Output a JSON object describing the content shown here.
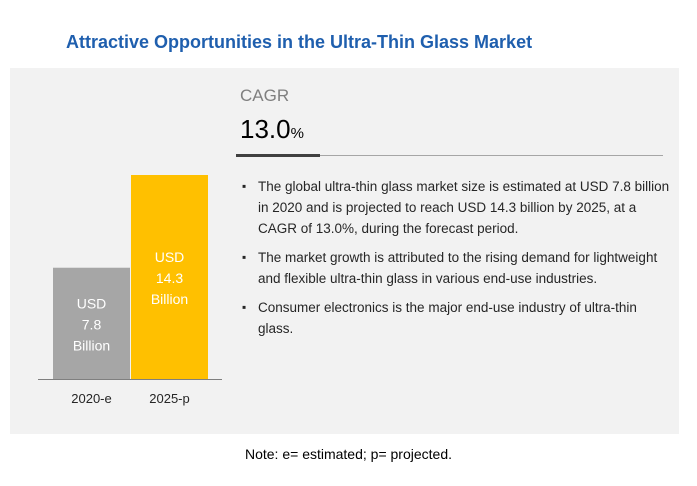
{
  "title": "Attractive Opportunities in the Ultra-Thin Glass Market",
  "cagr": {
    "label": "CAGR",
    "value": "13.0",
    "unit": "%"
  },
  "bullets": [
    "The global ultra-thin glass market size is estimated at USD 7.8 billion in 2020 and is projected to reach USD 14.3 billion by 2025, at a CAGR of 13.0%, during the forecast period.",
    "The market growth is attributed to the rising demand for lightweight and flexible ultra-thin glass in various end-use industries.",
    "Consumer electronics is the major end-use industry of ultra-thin glass."
  ],
  "note": "Note: e= estimated; p= projected.",
  "colors": {
    "title": "#1f5fae",
    "bar_2020": "#a6a6a6",
    "bar_2025": "#ffc000",
    "panel": "#f2f2f2"
  },
  "chart_data": {
    "type": "bar",
    "categories": [
      "2020-e",
      "2025-p"
    ],
    "values": [
      7.8,
      14.3
    ],
    "data_labels": [
      [
        "USD",
        "7.8",
        "Billion"
      ],
      [
        "USD",
        "14.3",
        "Billion"
      ]
    ],
    "unit": "USD Billion",
    "ylim": [
      0,
      14.3
    ],
    "grid": false,
    "legend": "none"
  }
}
